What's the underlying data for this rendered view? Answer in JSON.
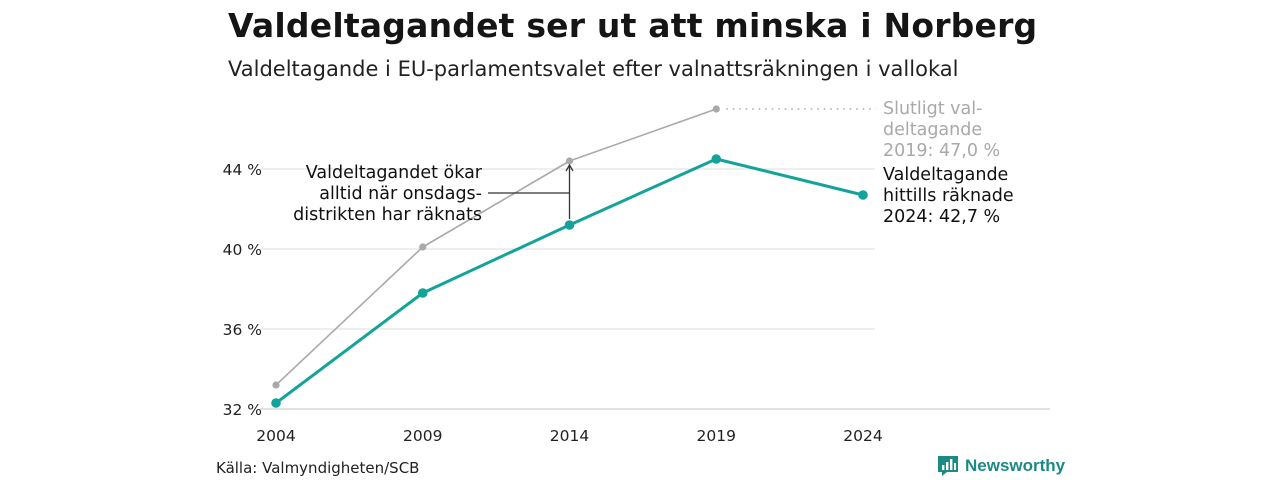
{
  "title": "Valdeltagandet ser ut att minska i Norberg",
  "subtitle": "Valdeltagande i EU-parlamentsvalet efter valnattsräkningen i vallokal",
  "source": "Källa: Valmyndigheten/SCB",
  "brand": "Newsworthy",
  "colors": {
    "final": "#a9a9a9",
    "current": "#14a39a",
    "grid": "#e3e3e3",
    "axis": "#cfcfcf",
    "brand": "#1c8a84"
  },
  "chart_data": {
    "type": "line",
    "x": [
      2004,
      2009,
      2014,
      2019,
      2024
    ],
    "ylim": [
      32,
      47.5
    ],
    "yticks": [
      32,
      36,
      40,
      44
    ],
    "ytick_labels": [
      "32 %",
      "36 %",
      "40 %",
      "44 %"
    ],
    "xtick_labels": [
      "2004",
      "2009",
      "2014",
      "2019",
      "2024"
    ],
    "grid": true,
    "series": [
      {
        "key": "final",
        "values": [
          33.2,
          40.1,
          44.4,
          47.0,
          null
        ]
      },
      {
        "key": "current",
        "values": [
          32.3,
          37.8,
          41.2,
          44.5,
          42.7
        ]
      }
    ],
    "annotations": {
      "final_lines": [
        "Slutligt val-",
        "deltagande",
        "2019: 47,0 %"
      ],
      "current_lines": [
        "Valdeltagande",
        "hittills räknade",
        "2024: 42,7 %"
      ],
      "note_lines": [
        "Valdeltagandet ökar",
        "alltid när onsdags-",
        "distrikten har räknats"
      ]
    }
  }
}
